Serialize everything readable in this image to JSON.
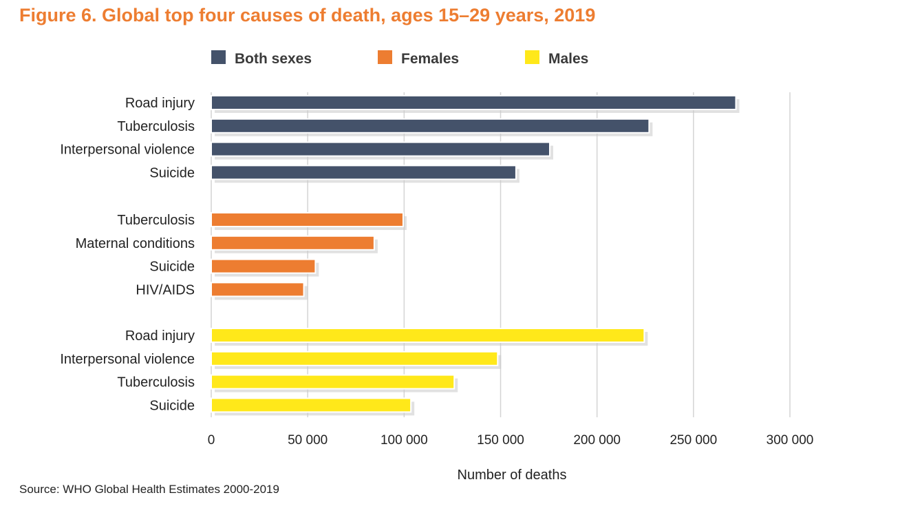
{
  "chart_data": {
    "type": "bar",
    "orientation": "horizontal",
    "title": "Figure 6. Global top four causes of death, ages 15–29 years, 2019",
    "xlabel": "Number of deaths",
    "ylabel": "",
    "source": "Source: WHO Global Health Estimates 2000-2019",
    "xlim": [
      0,
      300000
    ],
    "xticks": [
      0,
      50000,
      100000,
      150000,
      200000,
      250000,
      300000
    ],
    "xtick_labels": [
      "0",
      "50 000",
      "100 000",
      "150 000",
      "200 000",
      "250 000",
      "300 000"
    ],
    "grid": "vertical",
    "legend_position": "top",
    "groups": [
      {
        "name": "Both sexes",
        "color": "#44526a",
        "categories": [
          "Road injury",
          "Tuberculosis",
          "Interpersonal violence",
          "Suicide"
        ],
        "values": [
          272000,
          227000,
          175500,
          158000
        ]
      },
      {
        "name": "Females",
        "color": "#ed7d31",
        "categories": [
          "Tuberculosis",
          "Maternal conditions",
          "Suicide",
          "HIV/AIDS"
        ],
        "values": [
          99500,
          84500,
          54000,
          48000
        ]
      },
      {
        "name": "Males",
        "color": "#ffe81a",
        "categories": [
          "Road injury",
          "Interpersonal violence",
          "Tuberculosis",
          "Suicide"
        ],
        "values": [
          224500,
          148500,
          126000,
          103500
        ]
      }
    ]
  },
  "colors": {
    "title": "#ed7d31",
    "grid": "#d4d4d4",
    "shadow": "#c9c9c9"
  }
}
